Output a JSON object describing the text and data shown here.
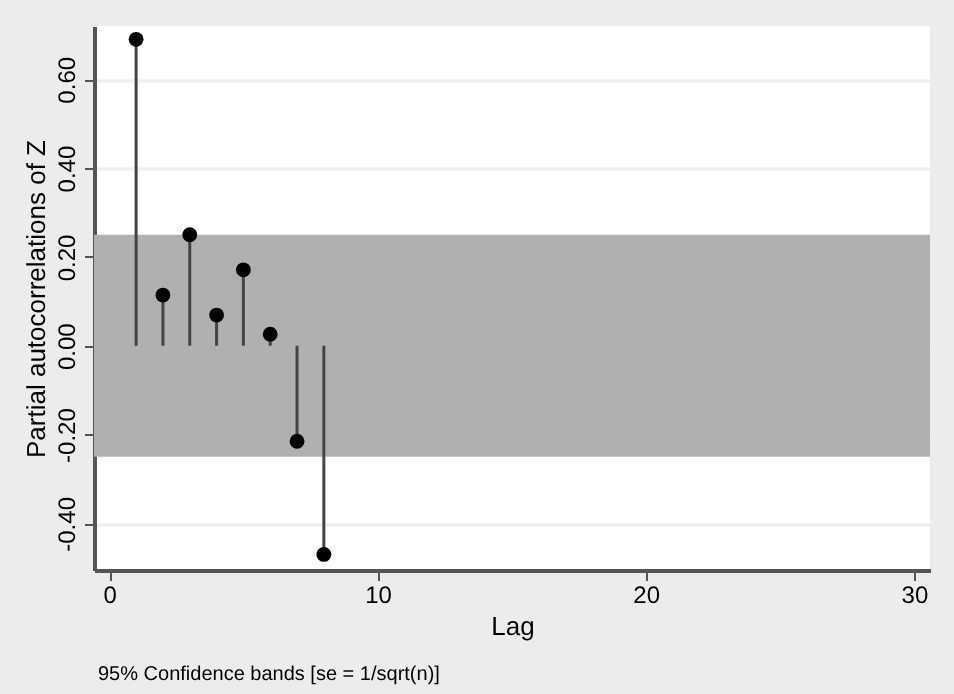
{
  "chart_data": {
    "type": "lollipop",
    "xlabel": "Lag",
    "ylabel": "Partial autocorrelations of Z",
    "x": [
      1,
      2,
      3,
      4,
      5,
      6,
      7,
      8
    ],
    "values": [
      0.69,
      0.114,
      0.25,
      0.069,
      0.171,
      0.026,
      -0.215,
      -0.47
    ],
    "color": "#000000",
    "marker": "circle",
    "xlim": [
      -0.57,
      30.6
    ],
    "xticks": [
      0,
      10,
      20,
      30
    ],
    "ylim": [
      -0.505,
      0.72
    ],
    "yticks": [
      {
        "value": -0.4,
        "label": "-0.40"
      },
      {
        "value": -0.2,
        "label": "-0.20"
      },
      {
        "value": 0,
        "label": "0.00"
      },
      {
        "value": 0.2,
        "label": "0.20"
      },
      {
        "value": 0.4,
        "label": "0.40"
      },
      {
        "value": 0.6,
        "label": "0.60"
      }
    ],
    "bands": [
      {
        "axis": "y",
        "from": -0.25,
        "to": 0.25,
        "color": "#b0b0b0"
      }
    ],
    "grid": "y",
    "annotations": [
      "95% Confidence bands [se = 1/sqrt(n)]"
    ]
  }
}
